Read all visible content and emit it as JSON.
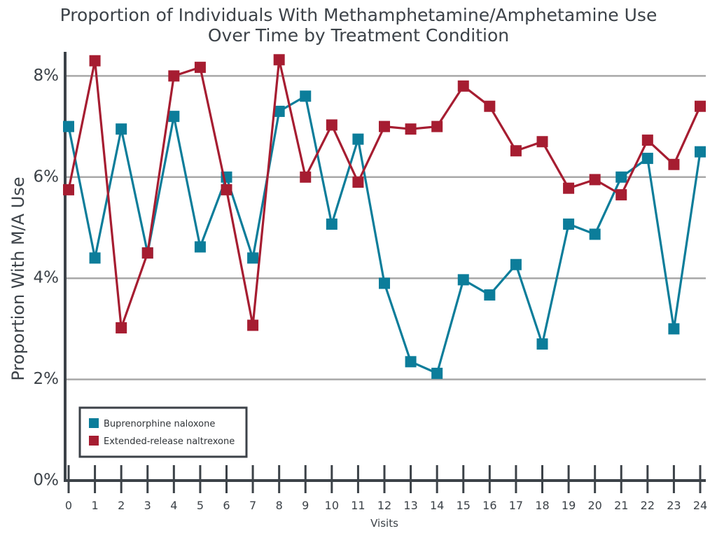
{
  "colors": {
    "buprenorphine": "#0c7d9a",
    "naltrexone": "#a61d31",
    "axis": "#3c4248",
    "grid": "#a8a8a8"
  },
  "chart_data": {
    "type": "line",
    "title_line1": "Proportion of Individuals With Methamphetamine/Amphetamine Use",
    "title_line2": "Over Time by Treatment Condition",
    "xlabel": "Visits",
    "ylabel": "Proportion With M/A Use",
    "x": [
      0,
      1,
      2,
      3,
      4,
      5,
      6,
      7,
      8,
      9,
      10,
      11,
      12,
      13,
      14,
      15,
      16,
      17,
      18,
      19,
      20,
      21,
      22,
      23,
      24
    ],
    "x_tick_labels": [
      "0",
      "1",
      "2",
      "3",
      "4",
      "5",
      "6",
      "7",
      "8",
      "9",
      "10",
      "11",
      "12",
      "13",
      "14",
      "15",
      "16",
      "17",
      "18",
      "19",
      "20",
      "21",
      "22",
      "23",
      "24"
    ],
    "y_ticks": [
      0,
      2,
      4,
      6,
      8
    ],
    "y_tick_labels": [
      "0%",
      "2%",
      "4%",
      "6%",
      "8%"
    ],
    "ylim": [
      0,
      8.8
    ],
    "grid": true,
    "legend_position": "bottom-left",
    "series": [
      {
        "name": "Buprenorphine naloxone",
        "color_key": "buprenorphine",
        "values": [
          7.0,
          4.4,
          6.95,
          4.5,
          7.2,
          4.62,
          6.0,
          4.4,
          7.3,
          7.6,
          5.07,
          6.75,
          3.9,
          2.35,
          2.12,
          3.97,
          3.67,
          4.27,
          2.7,
          5.07,
          4.87,
          6.0,
          6.37,
          3.0,
          6.5
        ]
      },
      {
        "name": "Extended-release naltrexone",
        "color_key": "naltrexone",
        "values": [
          5.75,
          8.3,
          3.02,
          4.5,
          8.0,
          8.17,
          5.75,
          3.07,
          8.32,
          6.0,
          7.03,
          5.9,
          7.0,
          6.95,
          7.0,
          7.8,
          7.4,
          6.52,
          6.7,
          5.78,
          5.95,
          5.65,
          6.73,
          6.25,
          7.4
        ]
      }
    ]
  }
}
